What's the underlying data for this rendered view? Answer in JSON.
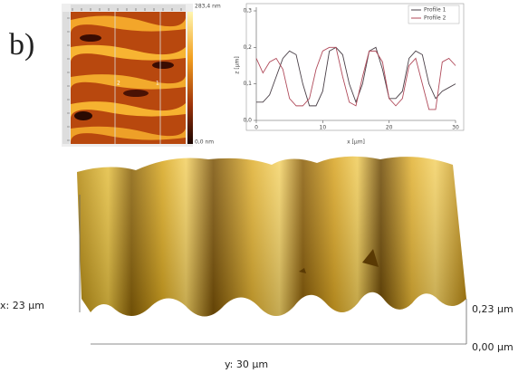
{
  "panel_label": "b)",
  "afm_image": {
    "colorbar_max": "283,4 nm",
    "colorbar_min": "0,0 nm",
    "profile_markers": [
      "2",
      "1"
    ]
  },
  "chart_data": {
    "type": "line",
    "xlabel": "x [µm]",
    "ylabel": "z [µm]",
    "x": [
      0,
      1,
      2,
      3,
      4,
      5,
      6,
      7,
      8,
      9,
      10,
      11,
      12,
      13,
      14,
      15,
      16,
      17,
      18,
      19,
      20,
      21,
      22,
      23,
      24,
      25,
      26,
      27,
      28,
      29,
      30
    ],
    "series": [
      {
        "name": "Profile 1",
        "color": "#4a4048",
        "values": [
          0.05,
          0.05,
          0.07,
          0.12,
          0.17,
          0.19,
          0.18,
          0.1,
          0.04,
          0.04,
          0.08,
          0.19,
          0.2,
          0.18,
          0.1,
          0.05,
          0.1,
          0.19,
          0.2,
          0.14,
          0.06,
          0.06,
          0.08,
          0.17,
          0.19,
          0.18,
          0.1,
          0.06,
          0.08,
          0.09,
          0.1
        ]
      },
      {
        "name": "Profile 2",
        "color": "#b04a5a",
        "values": [
          0.17,
          0.13,
          0.16,
          0.17,
          0.14,
          0.06,
          0.04,
          0.04,
          0.06,
          0.14,
          0.19,
          0.2,
          0.2,
          0.12,
          0.05,
          0.04,
          0.12,
          0.19,
          0.19,
          0.16,
          0.06,
          0.04,
          0.06,
          0.15,
          0.17,
          0.1,
          0.03,
          0.03,
          0.16,
          0.17,
          0.15
        ]
      }
    ],
    "xlim": [
      0,
      30
    ],
    "xticks": [
      0,
      10,
      20,
      30
    ],
    "ylim": [
      0,
      0.3
    ],
    "yticks": [
      {
        "value": 0,
        "label": "0,0"
      },
      {
        "value": 0.1,
        "label": "0,1"
      },
      {
        "value": 0.2,
        "label": "0,2"
      },
      {
        "value": 0.3,
        "label": "0,3"
      }
    ],
    "legend": "upper right"
  },
  "surface_3d": {
    "x_label": "x: 23 µm",
    "y_label": "y: 30 µm",
    "z_max_label": "0,23 µm",
    "z_min_label": "0,00 µm"
  }
}
